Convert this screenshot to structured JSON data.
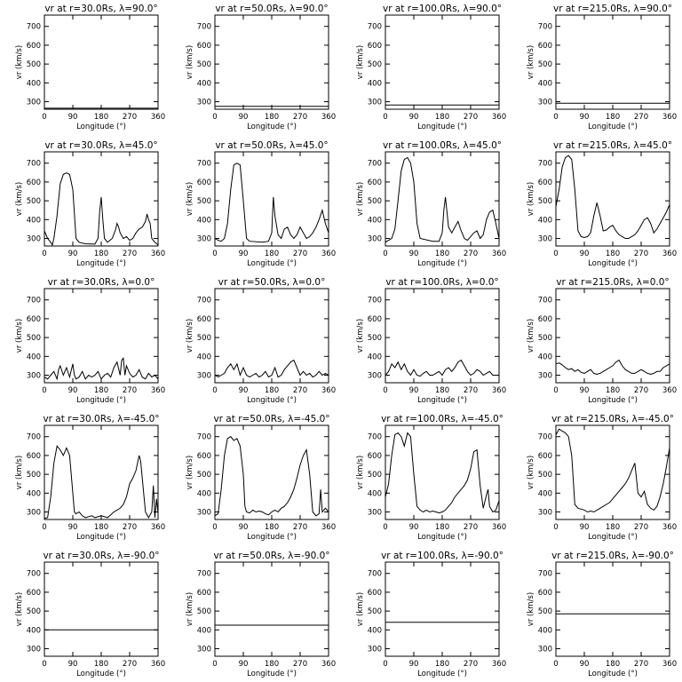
{
  "chart_data": {
    "type": "line",
    "layout": "grid 5x4",
    "xlabel": "Longitude (°)",
    "ylabel": "vr (km/s)",
    "xlim": [
      0,
      360
    ],
    "ylim": [
      260,
      760
    ],
    "xticks": [
      0,
      90,
      180,
      270,
      360
    ],
    "yticks": [
      300,
      400,
      500,
      600,
      700
    ],
    "grid": false,
    "panels": [
      {
        "title": "vr at r=30.0Rs, λ=90.0°",
        "x": [
          0,
          360
        ],
        "y": [
          265,
          265
        ]
      },
      {
        "title": "vr at r=50.0Rs, λ=90.0°",
        "x": [
          0,
          360
        ],
        "y": [
          275,
          275
        ]
      },
      {
        "title": "vr at r=100.0Rs, λ=90.0°",
        "x": [
          0,
          360
        ],
        "y": [
          282,
          282
        ]
      },
      {
        "title": "vr at r=215.0Rs, λ=90.0°",
        "x": [
          0,
          360
        ],
        "y": [
          292,
          292
        ]
      },
      {
        "title": "vr at r=30.0Rs, λ=45.0°",
        "x": [
          0,
          10,
          20,
          25,
          30,
          40,
          50,
          60,
          70,
          80,
          90,
          100,
          110,
          120,
          130,
          160,
          170,
          175,
          180,
          185,
          190,
          200,
          215,
          225,
          230,
          235,
          240,
          250,
          260,
          270,
          280,
          290,
          300,
          310,
          320,
          325,
          330,
          335,
          340,
          350,
          360
        ],
        "y": [
          340,
          300,
          280,
          265,
          300,
          420,
          590,
          640,
          648,
          640,
          560,
          300,
          280,
          275,
          272,
          270,
          300,
          440,
          520,
          400,
          300,
          280,
          300,
          345,
          380,
          360,
          330,
          300,
          310,
          290,
          300,
          330,
          350,
          360,
          390,
          430,
          400,
          380,
          300,
          280,
          265
        ]
      },
      {
        "title": "vr at r=50.0Rs, λ=45.0°",
        "x": [
          0,
          10,
          20,
          30,
          40,
          50,
          60,
          70,
          80,
          90,
          100,
          110,
          150,
          170,
          180,
          185,
          190,
          200,
          210,
          220,
          230,
          240,
          250,
          260,
          270,
          280,
          290,
          300,
          310,
          320,
          330,
          340,
          350,
          360
        ],
        "y": [
          300,
          290,
          285,
          300,
          380,
          560,
          690,
          700,
          690,
          500,
          300,
          285,
          280,
          285,
          330,
          520,
          420,
          320,
          300,
          350,
          360,
          320,
          300,
          320,
          360,
          330,
          300,
          310,
          330,
          360,
          400,
          450,
          380,
          330
        ]
      },
      {
        "title": "vr at r=100.0Rs, λ=45.0°",
        "x": [
          0,
          10,
          20,
          30,
          40,
          50,
          60,
          70,
          80,
          90,
          100,
          110,
          150,
          170,
          180,
          185,
          190,
          200,
          210,
          220,
          230,
          240,
          250,
          260,
          270,
          280,
          290,
          300,
          310,
          320,
          330,
          340,
          350,
          360
        ],
        "y": [
          280,
          290,
          300,
          350,
          500,
          660,
          720,
          730,
          700,
          600,
          380,
          300,
          285,
          285,
          330,
          450,
          520,
          360,
          330,
          360,
          390,
          340,
          300,
          290,
          310,
          330,
          340,
          300,
          320,
          400,
          440,
          450,
          380,
          300
        ]
      },
      {
        "title": "vr at r=215.0Rs, λ=45.0°",
        "x": [
          0,
          10,
          20,
          30,
          40,
          50,
          60,
          70,
          80,
          90,
          100,
          110,
          120,
          130,
          140,
          150,
          160,
          170,
          180,
          190,
          200,
          210,
          220,
          230,
          240,
          250,
          260,
          270,
          280,
          290,
          300,
          310,
          320,
          330,
          340,
          350,
          360
        ],
        "y": [
          470,
          560,
          680,
          730,
          740,
          720,
          560,
          340,
          310,
          305,
          310,
          330,
          420,
          490,
          420,
          340,
          345,
          360,
          370,
          340,
          320,
          310,
          300,
          300,
          310,
          320,
          340,
          370,
          400,
          410,
          380,
          330,
          350,
          380,
          410,
          440,
          480
        ]
      },
      {
        "title": "vr at r=30.0Rs, λ=0.0°",
        "x": [
          0,
          10,
          20,
          30,
          40,
          45,
          50,
          60,
          70,
          80,
          90,
          95,
          100,
          110,
          120,
          130,
          140,
          150,
          160,
          170,
          180,
          190,
          200,
          210,
          220,
          230,
          240,
          245,
          250,
          255,
          260,
          270,
          280,
          290,
          300,
          310,
          320,
          330,
          340,
          350,
          360
        ],
        "y": [
          290,
          280,
          300,
          320,
          280,
          330,
          350,
          300,
          340,
          290,
          360,
          300,
          280,
          290,
          320,
          280,
          300,
          290,
          300,
          320,
          280,
          300,
          310,
          290,
          340,
          370,
          300,
          380,
          390,
          300,
          350,
          310,
          290,
          300,
          330,
          290,
          280,
          310,
          290,
          300,
          280
        ]
      },
      {
        "title": "vr at r=50.0Rs, λ=0.0°",
        "x": [
          0,
          10,
          20,
          30,
          40,
          50,
          60,
          70,
          80,
          90,
          100,
          110,
          120,
          130,
          140,
          150,
          160,
          170,
          180,
          190,
          200,
          210,
          220,
          230,
          240,
          250,
          260,
          270,
          280,
          290,
          300,
          310,
          320,
          330,
          340,
          350,
          360
        ],
        "y": [
          300,
          290,
          300,
          310,
          340,
          360,
          330,
          360,
          300,
          340,
          300,
          290,
          300,
          310,
          290,
          300,
          320,
          290,
          300,
          340,
          290,
          300,
          330,
          350,
          370,
          380,
          340,
          300,
          320,
          300,
          310,
          290,
          300,
          320,
          300,
          310,
          300
        ]
      },
      {
        "title": "vr at r=100.0Rs, λ=0.0°",
        "x": [
          0,
          10,
          20,
          30,
          40,
          50,
          60,
          70,
          80,
          90,
          100,
          110,
          120,
          130,
          140,
          150,
          160,
          170,
          180,
          190,
          200,
          210,
          220,
          230,
          240,
          250,
          260,
          270,
          280,
          290,
          300,
          310,
          320,
          330,
          340,
          350,
          360
        ],
        "y": [
          300,
          320,
          360,
          340,
          370,
          330,
          360,
          320,
          300,
          330,
          300,
          295,
          310,
          320,
          300,
          300,
          310,
          320,
          300,
          330,
          340,
          320,
          340,
          370,
          380,
          350,
          320,
          300,
          310,
          330,
          320,
          300,
          310,
          320,
          300,
          300,
          300
        ]
      },
      {
        "title": "vr at r=215.0Rs, λ=0.0°",
        "x": [
          0,
          10,
          20,
          30,
          40,
          50,
          60,
          70,
          80,
          90,
          100,
          110,
          120,
          130,
          140,
          150,
          160,
          170,
          180,
          190,
          200,
          210,
          220,
          230,
          240,
          250,
          260,
          270,
          280,
          290,
          300,
          310,
          320,
          330,
          340,
          350,
          360
        ],
        "y": [
          360,
          365,
          355,
          340,
          330,
          335,
          320,
          330,
          315,
          310,
          320,
          330,
          310,
          305,
          310,
          320,
          330,
          340,
          350,
          370,
          380,
          350,
          330,
          320,
          310,
          310,
          320,
          330,
          320,
          310,
          305,
          310,
          320,
          320,
          340,
          350,
          360
        ]
      },
      {
        "title": "vr at r=30.0Rs, λ=-45.0°",
        "x": [
          0,
          10,
          20,
          30,
          40,
          50,
          60,
          70,
          80,
          90,
          95,
          100,
          110,
          120,
          130,
          140,
          150,
          160,
          180,
          200,
          210,
          220,
          230,
          240,
          250,
          260,
          270,
          280,
          290,
          300,
          305,
          310,
          320,
          330,
          340,
          345,
          350,
          355,
          360
        ],
        "y": [
          265,
          270,
          380,
          560,
          650,
          630,
          600,
          640,
          600,
          400,
          300,
          290,
          300,
          280,
          270,
          275,
          280,
          270,
          280,
          270,
          285,
          300,
          310,
          320,
          340,
          380,
          450,
          480,
          520,
          600,
          570,
          480,
          300,
          270,
          300,
          440,
          270,
          370,
          290
        ]
      },
      {
        "title": "vr at r=50.0Rs, λ=-45.0°",
        "x": [
          0,
          10,
          20,
          30,
          40,
          50,
          60,
          70,
          80,
          90,
          95,
          100,
          110,
          120,
          130,
          140,
          150,
          160,
          170,
          180,
          190,
          200,
          210,
          220,
          230,
          240,
          250,
          260,
          270,
          280,
          290,
          300,
          310,
          320,
          330,
          335,
          340,
          350,
          360
        ],
        "y": [
          280,
          290,
          420,
          600,
          690,
          700,
          680,
          690,
          650,
          500,
          330,
          300,
          295,
          310,
          300,
          305,
          300,
          290,
          285,
          300,
          310,
          300,
          320,
          330,
          350,
          380,
          420,
          480,
          550,
          600,
          630,
          500,
          300,
          280,
          290,
          420,
          300,
          320,
          300
        ]
      },
      {
        "title": "vr at r=100.0Rs, λ=-45.0°",
        "x": [
          0,
          10,
          20,
          30,
          40,
          50,
          60,
          70,
          80,
          90,
          100,
          110,
          120,
          130,
          140,
          150,
          160,
          170,
          180,
          190,
          200,
          210,
          220,
          230,
          240,
          250,
          260,
          270,
          280,
          290,
          300,
          310,
          320,
          325,
          330,
          340,
          350,
          360
        ],
        "y": [
          380,
          450,
          600,
          710,
          720,
          700,
          650,
          720,
          700,
          500,
          330,
          310,
          300,
          310,
          300,
          305,
          300,
          295,
          300,
          310,
          330,
          350,
          380,
          400,
          420,
          440,
          470,
          530,
          620,
          630,
          440,
          320,
          390,
          420,
          330,
          300,
          310,
          360
        ]
      },
      {
        "title": "vr at r=215.0Rs, λ=-45.0°",
        "x": [
          0,
          10,
          20,
          30,
          40,
          50,
          60,
          70,
          80,
          90,
          100,
          110,
          120,
          130,
          140,
          150,
          160,
          170,
          180,
          190,
          200,
          210,
          220,
          230,
          240,
          250,
          260,
          270,
          280,
          290,
          300,
          310,
          320,
          330,
          340,
          350,
          360
        ],
        "y": [
          710,
          740,
          730,
          720,
          700,
          600,
          340,
          320,
          315,
          310,
          300,
          305,
          300,
          310,
          320,
          330,
          340,
          350,
          370,
          390,
          410,
          430,
          450,
          480,
          520,
          560,
          400,
          380,
          410,
          340,
          320,
          310,
          330,
          380,
          450,
          540,
          640
        ]
      },
      {
        "title": "vr at r=30.0Rs, λ=-90.0°",
        "x": [
          0,
          360
        ],
        "y": [
          400,
          400
        ]
      },
      {
        "title": "vr at r=50.0Rs, λ=-90.0°",
        "x": [
          0,
          360
        ],
        "y": [
          425,
          425
        ]
      },
      {
        "title": "vr at r=100.0Rs, λ=-90.0°",
        "x": [
          0,
          360
        ],
        "y": [
          440,
          440
        ]
      },
      {
        "title": "vr at r=215.0Rs, λ=-90.0°",
        "x": [
          0,
          360
        ],
        "y": [
          485,
          485
        ]
      }
    ]
  }
}
